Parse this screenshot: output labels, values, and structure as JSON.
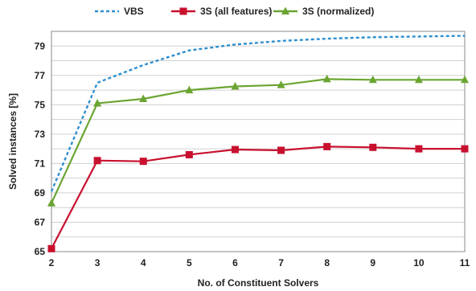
{
  "chart_data": {
    "type": "line",
    "title": "",
    "xlabel": "No. of Constituent Solvers",
    "ylabel": "Solved instances [%]",
    "x": [
      2,
      3,
      4,
      5,
      6,
      7,
      8,
      9,
      10,
      11
    ],
    "xlim": [
      2,
      11
    ],
    "ylim": [
      65,
      80
    ],
    "yticks": [
      65,
      67,
      69,
      71,
      73,
      75,
      77,
      79
    ],
    "grid": "horizontal",
    "legend_position": "top",
    "series": [
      {
        "name": "VBS",
        "style": "dashed",
        "marker": "none",
        "color": "#2f8fd0",
        "values": [
          69.1,
          76.5,
          77.7,
          78.7,
          79.1,
          79.35,
          79.5,
          79.6,
          79.65,
          79.7
        ]
      },
      {
        "name": "3S (all features)",
        "style": "solid",
        "marker": "square",
        "color": "#c8102e",
        "values": [
          65.2,
          71.2,
          71.15,
          71.6,
          71.95,
          71.9,
          72.15,
          72.1,
          72.0,
          72.0
        ]
      },
      {
        "name": "3S (normalized)",
        "style": "solid",
        "marker": "triangle",
        "color": "#6aa532",
        "values": [
          68.3,
          75.1,
          75.4,
          76.0,
          76.25,
          76.35,
          76.75,
          76.7,
          76.7,
          76.7
        ]
      }
    ]
  }
}
